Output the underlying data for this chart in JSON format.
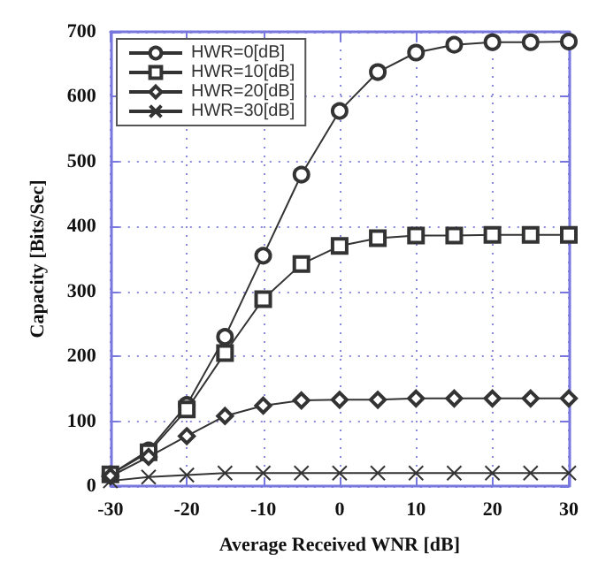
{
  "chart_data": {
    "type": "line",
    "xlabel": "Average Received WNR [dB]",
    "ylabel": "Capacity [Bits/Sec]",
    "x": [
      -30,
      -25,
      -20,
      -15,
      -10,
      -5,
      0,
      5,
      10,
      15,
      20,
      25,
      30
    ],
    "xlim": [
      -30,
      30
    ],
    "xticks": [
      -30,
      -20,
      -10,
      0,
      10,
      20,
      30
    ],
    "ylim": [
      0,
      700
    ],
    "yticks": [
      0,
      100,
      200,
      300,
      400,
      500,
      600,
      700
    ],
    "grid": true,
    "legend": "top left",
    "line_style": "solid",
    "series": [
      {
        "name": "HWR=0[dB]",
        "color": "#333333",
        "marker": "circle",
        "values": [
          18,
          55,
          125,
          230,
          355,
          480,
          578,
          638,
          668,
          680,
          684,
          684,
          685
        ]
      },
      {
        "name": "HWR=10[dB]",
        "color": "#333333",
        "marker": "square",
        "values": [
          18,
          52,
          118,
          205,
          288,
          342,
          370,
          382,
          386,
          386,
          387,
          387,
          387
        ]
      },
      {
        "name": "HWR=20[dB]",
        "color": "#333333",
        "marker": "diamond",
        "values": [
          15,
          45,
          77,
          108,
          124,
          132,
          133,
          133,
          135,
          135,
          135,
          135,
          135
        ]
      },
      {
        "name": "HWR=30[dB]",
        "color": "#333333",
        "marker": "cross",
        "values": [
          8,
          14,
          17,
          20,
          20,
          20,
          20,
          20,
          20,
          20,
          20,
          20,
          20
        ]
      }
    ]
  }
}
